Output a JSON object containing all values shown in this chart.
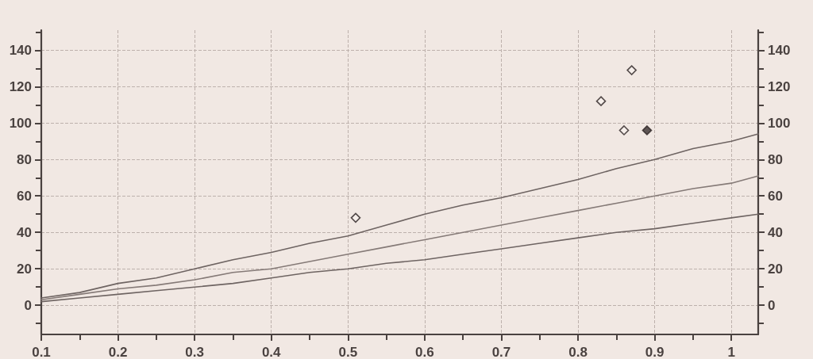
{
  "chart_data": {
    "type": "line",
    "x": [
      0.1,
      0.15,
      0.2,
      0.25,
      0.3,
      0.35,
      0.4,
      0.45,
      0.5,
      0.55,
      0.6,
      0.65,
      0.7,
      0.75,
      0.8,
      0.85,
      0.9,
      0.95,
      1.0,
      1.035
    ],
    "series": [
      {
        "color": "#6e6462",
        "values": [
          4,
          7,
          12,
          15,
          20,
          25,
          29,
          34,
          38,
          44,
          50,
          55,
          59,
          64,
          69,
          75,
          80,
          86,
          90,
          94
        ]
      },
      {
        "color": "#857a77",
        "values": [
          3,
          6,
          9,
          11,
          14,
          18,
          20,
          24,
          28,
          32,
          36,
          40,
          44,
          48,
          52,
          56,
          60,
          64,
          67,
          71
        ]
      },
      {
        "color": "#6e6462",
        "values": [
          2,
          4,
          6,
          8,
          10,
          12,
          15,
          18,
          20,
          23,
          25,
          28,
          31,
          34,
          37,
          40,
          42,
          45,
          48,
          50
        ]
      },
      {
        "type": "scatter",
        "x": [
          0.51,
          0.83,
          0.87,
          0.86
        ],
        "values": [
          48,
          112,
          129,
          96
        ],
        "color": "#f7f0ec",
        "marker": "diamond"
      },
      {
        "type": "scatter",
        "x": [
          0.89
        ],
        "values": [
          96
        ],
        "color": "#3a3030",
        "marker": "diamond"
      }
    ],
    "xlim": [
      0.1,
      1.035
    ],
    "xticks": [
      0.1,
      {
        "value": 0.15,
        "label": null
      },
      0.2,
      {
        "value": 0.25,
        "label": null
      },
      0.3,
      {
        "value": 0.35,
        "label": null
      },
      0.4,
      {
        "value": 0.45,
        "label": null
      },
      0.5,
      {
        "value": 0.55,
        "label": null
      },
      0.6,
      {
        "value": 0.65,
        "label": null
      },
      0.7,
      {
        "value": 0.75,
        "label": null
      },
      0.8,
      {
        "value": 0.85,
        "label": null
      },
      0.9,
      {
        "value": 0.95,
        "label": null
      },
      1
    ],
    "ylim": [
      -16,
      151
    ],
    "yticks": [
      {
        "value": -10,
        "label": null
      },
      0,
      {
        "value": 10,
        "label": null
      },
      20,
      {
        "value": 30,
        "label": null
      },
      40,
      {
        "value": 50,
        "label": null
      },
      60,
      {
        "value": 70,
        "label": null
      },
      80,
      {
        "value": 90,
        "label": null
      },
      100,
      {
        "value": 110,
        "label": null
      },
      120,
      {
        "value": 130,
        "label": null
      },
      140,
      {
        "value": 150,
        "label": null
      }
    ],
    "y2lim": [
      -16,
      151
    ],
    "y2ticks": [
      {
        "value": -10,
        "label": null
      },
      0,
      {
        "value": 10,
        "label": null
      },
      20,
      {
        "value": 30,
        "label": null
      },
      40,
      {
        "value": 50,
        "label": null
      },
      60,
      {
        "value": 70,
        "label": null
      },
      80,
      {
        "value": 90,
        "label": null
      },
      100,
      {
        "value": 110,
        "label": null
      },
      120,
      {
        "value": 130,
        "label": null
      },
      140,
      {
        "value": 150,
        "label": null
      }
    ],
    "grid": true
  }
}
